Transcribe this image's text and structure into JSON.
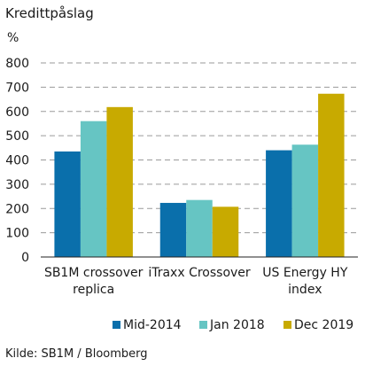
{
  "chart_data": {
    "type": "bar",
    "title": "Kredittpåslag",
    "ylabel": "%",
    "source": "Kilde: SB1M / Bloomberg",
    "ylim": [
      0,
      800
    ],
    "yticks": [
      0,
      100,
      200,
      300,
      400,
      500,
      600,
      700,
      800
    ],
    "grid": true,
    "legend_position": "bottom",
    "categories": [
      [
        "SB1M crossover",
        "replica"
      ],
      [
        "iTraxx Crossover"
      ],
      [
        "US Energy HY",
        "index"
      ]
    ],
    "series": [
      {
        "name": "Mid-2014",
        "color": "#0a6fab",
        "values": [
          435,
          223,
          440
        ]
      },
      {
        "name": "Jan 2018",
        "color": "#66c5c3",
        "values": [
          560,
          235,
          463
        ]
      },
      {
        "name": "Dec 2019",
        "color": "#c8aa00",
        "values": [
          618,
          207,
          673
        ]
      }
    ]
  }
}
